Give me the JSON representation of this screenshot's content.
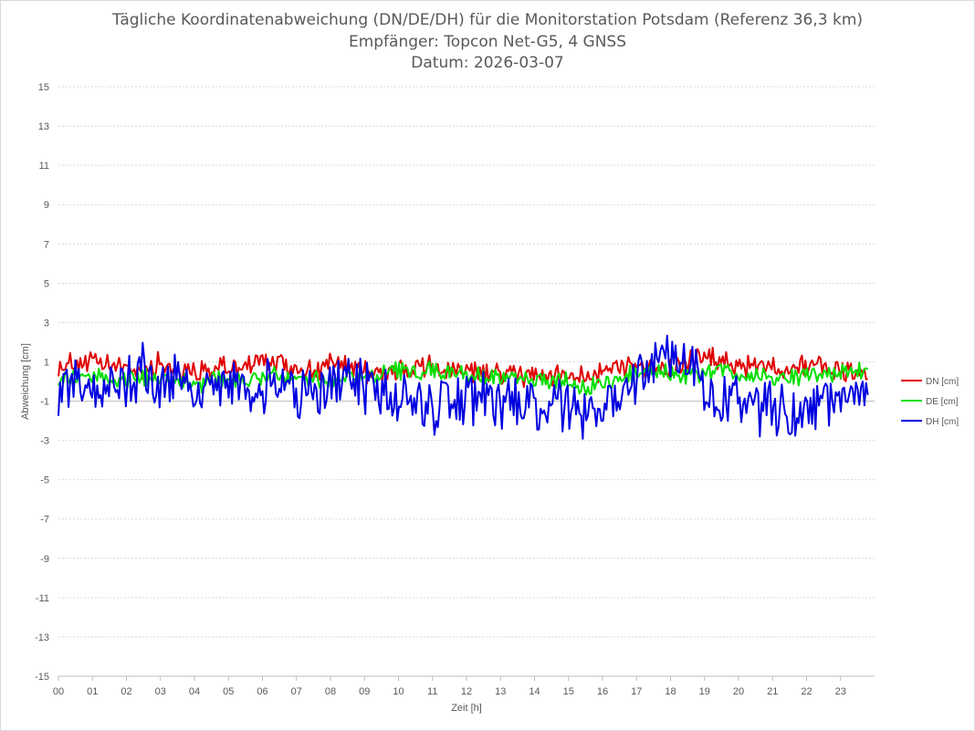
{
  "chart_data": {
    "type": "line",
    "title": "Tägliche Koordinatenabweichung (DN/DE/DH) für die Monitorstation Potsdam (Referenz 36,3 km)",
    "subtitle": "Empfänger: Topcon Net-G5, 4 GNSS",
    "date_line": "Datum: 2026-03-07",
    "xlabel": "Zeit [h]",
    "ylabel": "Abweichung [cm]",
    "xlim": [
      0,
      24
    ],
    "ylim": [
      -15,
      15
    ],
    "y_ticks": [
      "15",
      "13",
      "11",
      "9",
      "7",
      "5",
      "3",
      "1",
      "-1",
      "-3",
      "-5",
      "-7",
      "-9",
      "-11",
      "-13",
      "-15"
    ],
    "x_ticks": [
      "00",
      "01",
      "02",
      "03",
      "04",
      "05",
      "06",
      "07",
      "08",
      "09",
      "10",
      "11",
      "12",
      "13",
      "14",
      "15",
      "16",
      "17",
      "18",
      "19",
      "20",
      "21",
      "22",
      "23"
    ],
    "grid": "horizontal dotted",
    "legend_position": "right",
    "series": [
      {
        "name": "DN [cm]",
        "color": "#e00000",
        "x": [
          0,
          0.5,
          1,
          1.5,
          2,
          2.5,
          3,
          3.5,
          4,
          4.5,
          5,
          5.5,
          6,
          6.5,
          7,
          7.5,
          8,
          8.5,
          9,
          9.5,
          10,
          10.5,
          11,
          11.5,
          12,
          12.5,
          13,
          13.5,
          14,
          14.5,
          15,
          15.5,
          16,
          16.5,
          17,
          17.5,
          18,
          18.5,
          19,
          19.5,
          20,
          20.5,
          21,
          21.5,
          22,
          22.5,
          23,
          23.5,
          23.8
        ],
        "values": [
          0.8,
          1.0,
          0.9,
          0.8,
          0.7,
          0.6,
          0.9,
          0.6,
          0.4,
          0.6,
          0.7,
          0.8,
          1.0,
          0.9,
          0.7,
          0.6,
          0.8,
          0.9,
          0.6,
          0.4,
          0.5,
          0.6,
          0.7,
          0.6,
          0.5,
          0.4,
          0.4,
          0.3,
          0.3,
          0.2,
          0.3,
          0.4,
          0.6,
          0.7,
          0.9,
          0.7,
          0.6,
          0.9,
          1.2,
          1.0,
          0.8,
          0.7,
          0.8,
          0.7,
          0.9,
          0.7,
          0.6,
          0.5,
          0.2
        ]
      },
      {
        "name": "DE [cm]",
        "color": "#00e000",
        "x": [
          0,
          0.5,
          1,
          1.5,
          2,
          2.5,
          3,
          3.5,
          4,
          4.5,
          5,
          5.5,
          6,
          6.5,
          7,
          7.5,
          8,
          8.5,
          9,
          9.5,
          10,
          10.5,
          11,
          11.5,
          12,
          12.5,
          13,
          13.5,
          14,
          14.5,
          15,
          15.5,
          16,
          16.5,
          17,
          17.5,
          18,
          18.5,
          19,
          19.5,
          20,
          20.5,
          21,
          21.5,
          22,
          22.5,
          23,
          23.5,
          23.8
        ],
        "values": [
          0.0,
          0.3,
          0.2,
          0.1,
          0.1,
          0.2,
          0.3,
          0.0,
          -0.3,
          0.1,
          0.2,
          0.1,
          0.3,
          0.3,
          0.2,
          0.1,
          0.1,
          0.3,
          0.3,
          0.4,
          0.5,
          0.5,
          0.6,
          0.5,
          0.4,
          0.2,
          0.2,
          0.1,
          0.1,
          0.1,
          -0.1,
          -0.3,
          -0.2,
          0.1,
          0.4,
          0.6,
          0.4,
          0.3,
          0.4,
          0.5,
          0.4,
          0.3,
          0.2,
          0.2,
          0.3,
          0.4,
          0.5,
          0.5,
          0.6
        ]
      },
      {
        "name": "DH [cm]",
        "color": "#0000e0",
        "x": [
          0,
          0.5,
          1,
          1.5,
          2,
          2.5,
          3,
          3.5,
          4,
          4.5,
          5,
          5.5,
          6,
          6.5,
          7,
          7.5,
          8,
          8.5,
          9,
          9.5,
          10,
          10.5,
          11,
          11.5,
          12,
          12.5,
          13,
          13.5,
          14,
          14.5,
          15,
          15.5,
          16,
          16.5,
          17,
          17.5,
          18,
          18.5,
          19,
          19.5,
          20,
          20.5,
          21,
          21.5,
          22,
          22.5,
          23,
          23.5,
          23.8
        ],
        "values": [
          -0.5,
          0.2,
          -0.8,
          0.4,
          -0.6,
          0.8,
          -0.3,
          0.2,
          -1.0,
          -0.2,
          0.0,
          -0.4,
          -0.6,
          -0.3,
          -0.5,
          -0.6,
          -0.1,
          0.0,
          -0.2,
          -0.5,
          -0.8,
          -1.0,
          -1.4,
          -1.2,
          -0.7,
          -0.8,
          -1.0,
          -1.5,
          -1.6,
          -1.1,
          -0.9,
          -1.8,
          -1.3,
          -0.8,
          0.6,
          1.2,
          1.4,
          1.1,
          -0.2,
          -1.0,
          -1.3,
          -1.2,
          -1.5,
          -1.8,
          -1.2,
          -1.0,
          -0.5,
          -0.8,
          -1.0
        ]
      }
    ]
  }
}
